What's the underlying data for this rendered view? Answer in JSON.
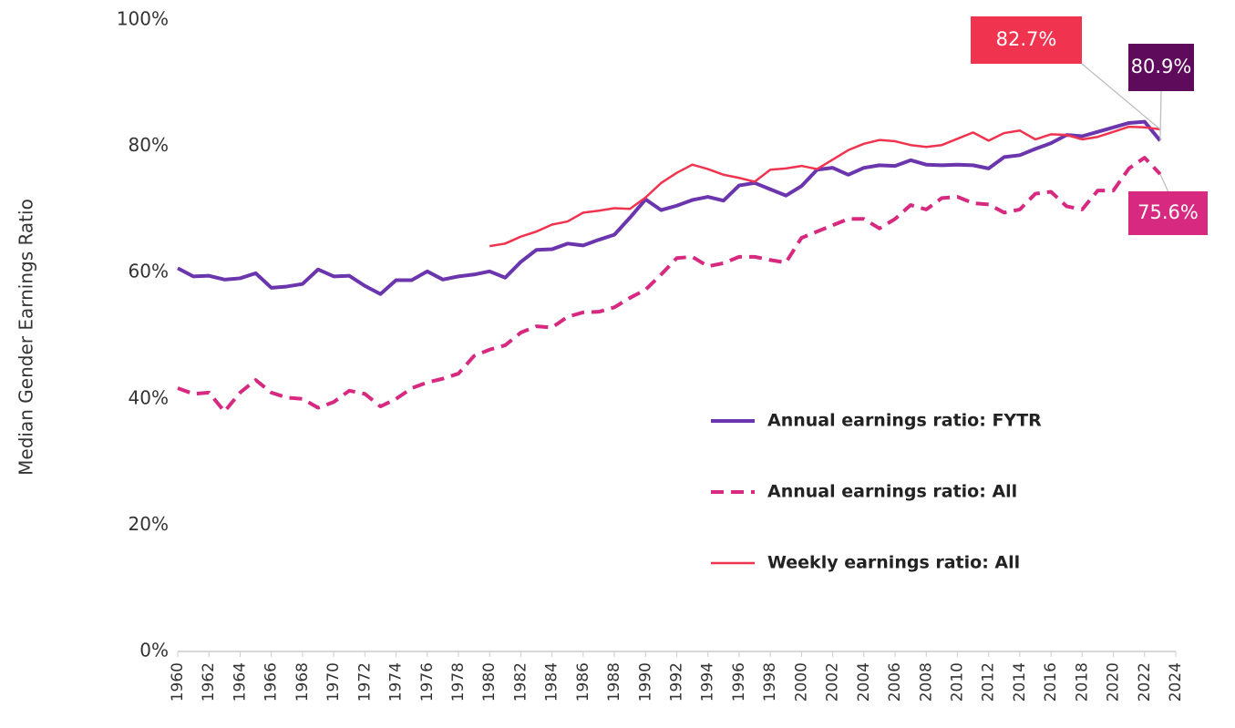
{
  "chart_data": {
    "type": "line",
    "y_label": "Median Gender Earnings Ratio",
    "x": [
      1960,
      1961,
      1962,
      1963,
      1964,
      1965,
      1966,
      1967,
      1968,
      1969,
      1970,
      1971,
      1972,
      1973,
      1974,
      1975,
      1976,
      1977,
      1978,
      1979,
      1980,
      1981,
      1982,
      1983,
      1984,
      1985,
      1986,
      1987,
      1988,
      1989,
      1990,
      1991,
      1992,
      1993,
      1994,
      1995,
      1996,
      1997,
      1998,
      1999,
      2000,
      2001,
      2002,
      2003,
      2004,
      2005,
      2006,
      2007,
      2008,
      2009,
      2010,
      2011,
      2012,
      2013,
      2014,
      2015,
      2016,
      2017,
      2018,
      2019,
      2020,
      2021,
      2022,
      2023
    ],
    "series": [
      {
        "name": "Annual earnings ratio: FYTR",
        "color": "#6b35ad",
        "dashed": false,
        "width": 4,
        "values": [
          60.7,
          59.4,
          59.5,
          58.9,
          59.1,
          59.9,
          57.6,
          57.8,
          58.2,
          60.5,
          59.4,
          59.5,
          57.9,
          56.6,
          58.8,
          58.8,
          60.2,
          58.9,
          59.4,
          59.7,
          60.2,
          59.2,
          61.7,
          63.6,
          63.7,
          64.6,
          64.3,
          65.2,
          66.0,
          68.7,
          71.6,
          69.9,
          70.6,
          71.5,
          72.0,
          71.4,
          73.8,
          74.2,
          73.2,
          72.2,
          73.7,
          76.3,
          76.6,
          75.5,
          76.6,
          77.0,
          76.9,
          77.8,
          77.1,
          77.0,
          77.1,
          77.0,
          76.5,
          78.3,
          78.6,
          79.6,
          80.5,
          81.8,
          81.6,
          82.3,
          83.0,
          83.7,
          83.9,
          80.9
        ]
      },
      {
        "name": "Annual earnings ratio: All",
        "color": "#d6297f",
        "dashed": true,
        "width": 4,
        "values": [
          41.7,
          40.8,
          41.0,
          38.0,
          41.0,
          43.0,
          41.0,
          40.2,
          40.0,
          38.6,
          39.5,
          41.3,
          40.8,
          38.8,
          40.0,
          41.7,
          42.6,
          43.2,
          44.0,
          46.8,
          47.8,
          48.5,
          50.5,
          51.5,
          51.3,
          53.0,
          53.7,
          53.8,
          54.5,
          56.0,
          57.3,
          59.7,
          62.3,
          62.5,
          61.0,
          61.5,
          62.5,
          62.5,
          62.0,
          61.6,
          65.5,
          66.5,
          67.5,
          68.5,
          68.5,
          67.0,
          68.5,
          70.7,
          70.0,
          71.8,
          72.0,
          71.0,
          70.8,
          69.5,
          70.0,
          72.5,
          72.8,
          70.5,
          70.0,
          73.0,
          73.0,
          76.5,
          78.2,
          75.6
        ]
      },
      {
        "name": "Weekly earnings ratio: All",
        "color": "#f0344f",
        "dashed": false,
        "width": 2.5,
        "values": [
          null,
          null,
          null,
          null,
          null,
          null,
          null,
          null,
          null,
          null,
          null,
          null,
          null,
          null,
          null,
          null,
          null,
          null,
          null,
          null,
          64.2,
          64.6,
          65.7,
          66.5,
          67.6,
          68.1,
          69.5,
          69.8,
          70.2,
          70.1,
          71.9,
          74.2,
          75.8,
          77.1,
          76.4,
          75.5,
          75.0,
          74.4,
          76.3,
          76.5,
          76.9,
          76.4,
          77.9,
          79.4,
          80.4,
          81.0,
          80.8,
          80.2,
          79.9,
          80.2,
          81.2,
          82.2,
          80.9,
          82.1,
          82.5,
          81.1,
          81.9,
          81.8,
          81.1,
          81.5,
          82.3,
          83.1,
          83.0,
          82.7
        ]
      }
    ],
    "annotations": [
      {
        "text": "82.7%",
        "color": "#f0344f",
        "series": 2
      },
      {
        "text": "80.9%",
        "color": "#5e0b5c",
        "series": 0
      },
      {
        "text": "75.6%",
        "color": "#d6297f",
        "series": 1
      }
    ],
    "xlim": [
      1960,
      2024
    ],
    "xticks": [
      1960,
      1962,
      1964,
      1966,
      1968,
      1970,
      1972,
      1974,
      1976,
      1978,
      1980,
      1982,
      1984,
      1986,
      1988,
      1990,
      1992,
      1994,
      1996,
      1998,
      2000,
      2002,
      2004,
      2006,
      2008,
      2010,
      2012,
      2014,
      2016,
      2018,
      2020,
      2022,
      2024
    ],
    "ylim": [
      0,
      100
    ],
    "yticks": [
      {
        "value": 0,
        "label": "0%"
      },
      {
        "value": 20,
        "label": "20%"
      },
      {
        "value": 40,
        "label": "40%"
      },
      {
        "value": 60,
        "label": "60%"
      },
      {
        "value": 80,
        "label": "80%"
      },
      {
        "value": 100,
        "label": "100%"
      }
    ],
    "legend": "lower right",
    "grid": false
  }
}
